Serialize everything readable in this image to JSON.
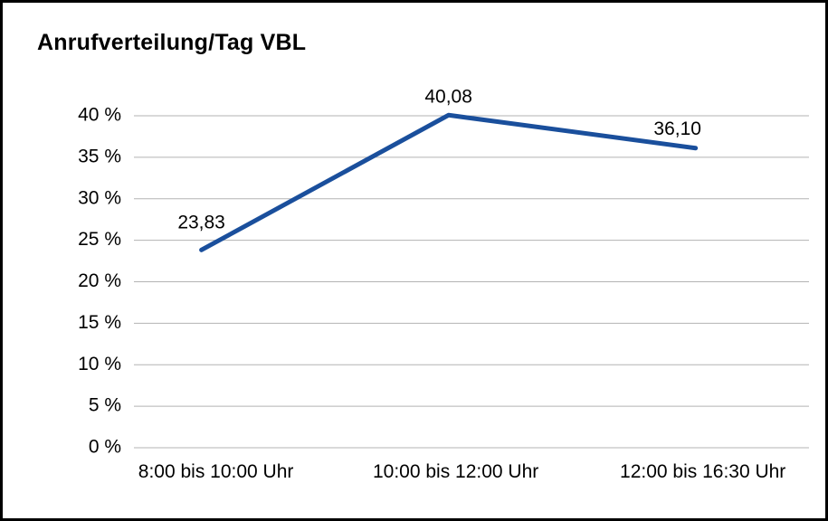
{
  "chart_data": {
    "type": "line",
    "title": "Anrufverteilung/Tag VBL",
    "categories": [
      "8:00 bis 10:00 Uhr",
      "10:00 bis 12:00 Uhr",
      "12:00 bis 16:30 Uhr"
    ],
    "values": [
      23.83,
      40.08,
      36.1
    ],
    "value_labels": [
      "23,83",
      "40,08",
      "36,10"
    ],
    "xlabel": "",
    "ylabel": "",
    "ylim": [
      0,
      40
    ],
    "ytick_step": 5,
    "ytick_suffix": " %",
    "grid": true,
    "legend": "none",
    "line_color": "#1a4f9c",
    "grid_color": "#b3b3b3",
    "text_color": "#000000"
  }
}
